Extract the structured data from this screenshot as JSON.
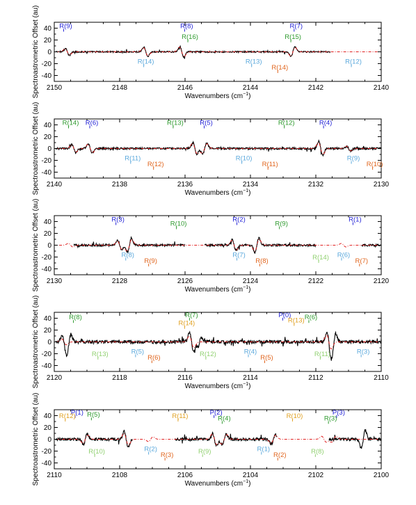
{
  "colors": {
    "dark_blue": "#1f1fd6",
    "green": "#2e9a2e",
    "light_blue": "#5aa8dc",
    "orange": "#e0641c",
    "yellow_orange": "#e0a020",
    "light_green": "#90d070",
    "data_line": "#000000",
    "model_line": "#e02020"
  },
  "chart_data": [
    {
      "type": "line",
      "xlabel": "Wavenumbers (cm",
      "xlabel_sup": "−1",
      "xlabel_end": ")",
      "ylabel": "Spectroastrometric Offset (au)",
      "xlim": [
        2150,
        2140
      ],
      "ylim": [
        -50,
        50
      ],
      "x_ticks": [
        "2150",
        "2148",
        "2146",
        "2144",
        "2142",
        "2140"
      ],
      "y_ticks": [
        "40",
        "20",
        "0",
        "-20",
        "-40"
      ],
      "series": [
        {
          "role": "data",
          "segments": [
            [
              2149.95,
              2141.55
            ]
          ],
          "features": [
            [
              2149.6,
              6
            ],
            [
              2147.2,
              8
            ],
            [
              2146.1,
              9
            ],
            [
              2142.7,
              -8
            ]
          ],
          "noise": 1.2
        },
        {
          "role": "model",
          "segments": [
            [
              2149.95,
              2140.0
            ]
          ],
          "features": [
            [
              2149.6,
              5
            ],
            [
              2147.2,
              7
            ],
            [
              2146.1,
              8
            ],
            [
              2142.7,
              -7
            ]
          ]
        }
      ],
      "annotations": [
        {
          "label": "R(9)",
          "x": 2149.65,
          "y": 40,
          "color": "dark_blue"
        },
        {
          "label": "R(8)",
          "x": 2145.95,
          "y": 40,
          "color": "dark_blue"
        },
        {
          "label": "R(7)",
          "x": 2142.6,
          "y": 40,
          "color": "dark_blue"
        },
        {
          "label": "R(16)",
          "x": 2145.85,
          "y": 22,
          "color": "green"
        },
        {
          "label": "R(15)",
          "x": 2142.7,
          "y": 22,
          "color": "green"
        },
        {
          "label": "R(14)",
          "x": 2147.2,
          "y": -20,
          "color": "light_blue"
        },
        {
          "label": "R(13)",
          "x": 2143.9,
          "y": -20,
          "color": "light_blue"
        },
        {
          "label": "R(12)",
          "x": 2140.85,
          "y": -20,
          "color": "light_blue"
        },
        {
          "label": "R(14)",
          "x": 2143.1,
          "y": -30,
          "color": "orange"
        }
      ]
    },
    {
      "type": "line",
      "xlabel": "Wavenumbers (cm",
      "xlabel_sup": "−1",
      "xlabel_end": ")",
      "ylabel": "Spectroastrometric Offset (au)",
      "xlim": [
        2140,
        2130
      ],
      "ylim": [
        -50,
        50
      ],
      "x_ticks": [
        "2140",
        "2138",
        "2136",
        "2134",
        "2132",
        "2130"
      ],
      "y_ticks": [
        "40",
        "20",
        "0",
        "-20",
        "-40"
      ],
      "series": [
        {
          "role": "data",
          "segments": [
            [
              2139.95,
              2130.0
            ]
          ],
          "features": [
            [
              2139.4,
              7
            ],
            [
              2138.9,
              8
            ],
            [
              2135.7,
              10
            ],
            [
              2135.4,
              -9
            ],
            [
              2131.85,
              12
            ],
            [
              2131.0,
              4
            ]
          ],
          "noise": 1.6
        },
        {
          "role": "model",
          "segments": [
            [
              2139.95,
              2130.0
            ]
          ],
          "features": [
            [
              2139.4,
              6
            ],
            [
              2138.9,
              7
            ],
            [
              2135.7,
              9
            ],
            [
              2135.4,
              -8
            ],
            [
              2131.85,
              10
            ],
            [
              2131.0,
              4
            ]
          ]
        }
      ],
      "annotations": [
        {
          "label": "R(14)",
          "x": 2139.5,
          "y": 40,
          "color": "green"
        },
        {
          "label": "R(6)",
          "x": 2138.85,
          "y": 40,
          "color": "dark_blue"
        },
        {
          "label": "R(13)",
          "x": 2136.3,
          "y": 40,
          "color": "green"
        },
        {
          "label": "R(5)",
          "x": 2135.35,
          "y": 40,
          "color": "dark_blue"
        },
        {
          "label": "R(12)",
          "x": 2132.9,
          "y": 40,
          "color": "green"
        },
        {
          "label": "R(4)",
          "x": 2131.7,
          "y": 40,
          "color": "dark_blue"
        },
        {
          "label": "R(11)",
          "x": 2137.6,
          "y": -20,
          "color": "light_blue"
        },
        {
          "label": "R(10)",
          "x": 2134.2,
          "y": -20,
          "color": "light_blue"
        },
        {
          "label": "R(9)",
          "x": 2130.85,
          "y": -20,
          "color": "light_blue"
        },
        {
          "label": "R(12)",
          "x": 2136.9,
          "y": -30,
          "color": "orange"
        },
        {
          "label": "R(11)",
          "x": 2133.4,
          "y": -30,
          "color": "orange"
        },
        {
          "label": "R(10)",
          "x": 2130.2,
          "y": -30,
          "color": "orange"
        }
      ]
    },
    {
      "type": "line",
      "xlabel": "Wavenumbers (cm",
      "xlabel_sup": "−1",
      "xlabel_end": ")",
      "ylabel": "Spectroastrometric Offset (au)",
      "xlim": [
        2130,
        2120
      ],
      "ylim": [
        -50,
        50
      ],
      "x_ticks": [
        "2130",
        "2128",
        "2126",
        "2124",
        "2122",
        "2120"
      ],
      "y_ticks": [
        "40",
        "20",
        "0",
        "-20",
        "-40"
      ],
      "series": [
        {
          "role": "data",
          "segments": [
            [
              2129.4,
              2126.0
            ],
            [
              2125.4,
              2122.0
            ],
            [
              2120.6,
              2120.0
            ]
          ],
          "features": [
            [
              2128.0,
              8
            ],
            [
              2127.7,
              -12
            ],
            [
              2124.5,
              9
            ],
            [
              2123.8,
              -12
            ]
          ],
          "noise": 1.8
        },
        {
          "role": "model",
          "segments": [
            [
              2129.85,
              2120.0
            ]
          ],
          "features": [
            [
              2129.5,
              3
            ],
            [
              2128.0,
              7
            ],
            [
              2127.7,
              -10
            ],
            [
              2124.5,
              8
            ],
            [
              2123.8,
              -10
            ],
            [
              2121.15,
              3
            ]
          ]
        }
      ],
      "annotations": [
        {
          "label": "R(3)",
          "x": 2128.05,
          "y": 40,
          "color": "dark_blue"
        },
        {
          "label": "R(2)",
          "x": 2124.35,
          "y": 40,
          "color": "dark_blue"
        },
        {
          "label": "R(1)",
          "x": 2120.8,
          "y": 40,
          "color": "dark_blue"
        },
        {
          "label": "R(10)",
          "x": 2126.2,
          "y": 33,
          "color": "green"
        },
        {
          "label": "R(9)",
          "x": 2123.05,
          "y": 33,
          "color": "green"
        },
        {
          "label": "R(8)",
          "x": 2127.75,
          "y": -20,
          "color": "light_blue"
        },
        {
          "label": "R(7)",
          "x": 2124.35,
          "y": -20,
          "color": "light_blue"
        },
        {
          "label": "R(6)",
          "x": 2121.15,
          "y": -20,
          "color": "light_blue"
        },
        {
          "label": "R(14)",
          "x": 2121.85,
          "y": -24,
          "color": "light_green"
        },
        {
          "label": "R(9)",
          "x": 2127.05,
          "y": -30,
          "color": "orange"
        },
        {
          "label": "R(8)",
          "x": 2123.65,
          "y": -30,
          "color": "orange"
        },
        {
          "label": "R(7)",
          "x": 2120.6,
          "y": -30,
          "color": "orange"
        }
      ]
    },
    {
      "type": "line",
      "xlabel": "Wavenumbers (cm",
      "xlabel_sup": "−1",
      "xlabel_end": ")",
      "ylabel": "Spectroastrometric Offset (au)",
      "xlim": [
        2120,
        2110
      ],
      "ylim": [
        -50,
        50
      ],
      "x_ticks": [
        "2120",
        "2118",
        "2116",
        "2114",
        "2112",
        "2110"
      ],
      "y_ticks": [
        "40",
        "20",
        "0",
        "-20",
        "-40"
      ],
      "series": [
        {
          "role": "data",
          "segments": [
            [
              2119.95,
              2110.0
            ]
          ],
          "features": [
            [
              2119.7,
              10
            ],
            [
              2119.55,
              -13
            ],
            [
              2115.8,
              16
            ],
            [
              2115.55,
              -8
            ],
            [
              2111.6,
              17
            ],
            [
              2111.45,
              -14
            ]
          ],
          "noise": 2.8
        },
        {
          "role": "model",
          "segments": [
            [
              2119.95,
              2110.0
            ]
          ],
          "features": [
            [
              2119.7,
              5
            ],
            [
              2115.8,
              10
            ],
            [
              2111.6,
              12
            ]
          ]
        }
      ],
      "annotations": [
        {
          "label": "R(8)",
          "x": 2119.35,
          "y": 38,
          "color": "green"
        },
        {
          "label": "R(7)",
          "x": 2115.8,
          "y": 42,
          "color": "green"
        },
        {
          "label": "P(0)",
          "x": 2112.95,
          "y": 42,
          "color": "dark_blue"
        },
        {
          "label": "R(14)",
          "x": 2115.95,
          "y": 28,
          "color": "yellow_orange"
        },
        {
          "label": "R(13)",
          "x": 2112.6,
          "y": 33,
          "color": "yellow_orange"
        },
        {
          "label": "R(6)",
          "x": 2112.15,
          "y": 38,
          "color": "green"
        },
        {
          "label": "R(13)",
          "x": 2118.6,
          "y": -24,
          "color": "light_green"
        },
        {
          "label": "R(5)",
          "x": 2117.45,
          "y": -20,
          "color": "light_blue"
        },
        {
          "label": "R(12)",
          "x": 2115.3,
          "y": -24,
          "color": "light_green"
        },
        {
          "label": "R(4)",
          "x": 2114.0,
          "y": -20,
          "color": "light_blue"
        },
        {
          "label": "R(11)",
          "x": 2111.8,
          "y": -24,
          "color": "light_green"
        },
        {
          "label": "R(3)",
          "x": 2110.55,
          "y": -20,
          "color": "light_blue"
        },
        {
          "label": "R(6)",
          "x": 2116.95,
          "y": -30,
          "color": "orange"
        },
        {
          "label": "R(5)",
          "x": 2113.5,
          "y": -30,
          "color": "orange"
        }
      ]
    },
    {
      "type": "line",
      "xlabel": "Wavenumbers (cm",
      "xlabel_sup": "−1",
      "xlabel_end": ")",
      "ylabel": "Spectroastrometric Offset (au)",
      "xlim": [
        2110,
        2100
      ],
      "ylim": [
        -50,
        50
      ],
      "x_ticks": [
        "2110",
        "2108",
        "2106",
        "2104",
        "2102",
        "2100"
      ],
      "y_ticks": [
        "40",
        "20",
        "0",
        "-20",
        "-40"
      ],
      "series": [
        {
          "role": "data",
          "segments": [
            [
              2109.95,
              2107.6
            ],
            [
              2106.3,
              2103.2
            ],
            [
              2101.6,
              2100.0
            ]
          ],
          "features": [
            [
              2109.05,
              -9
            ],
            [
              2107.8,
              13
            ],
            [
              2105.1,
              10
            ],
            [
              2104.8,
              -9
            ],
            [
              2103.3,
              -8
            ],
            [
              2100.55,
              -15
            ]
          ],
          "noise": 2.4
        },
        {
          "role": "model",
          "segments": [
            [
              2109.95,
              2100.0
            ]
          ],
          "features": [
            [
              2109.05,
              -7
            ],
            [
              2107.8,
              10
            ],
            [
              2107.05,
              -4
            ],
            [
              2105.1,
              9
            ],
            [
              2104.8,
              -8
            ],
            [
              2103.3,
              -7
            ],
            [
              2101.75,
              5
            ],
            [
              2101.45,
              -5
            ]
          ]
        }
      ],
      "annotations": [
        {
          "label": "P(1)",
          "x": 2109.3,
          "y": 42,
          "color": "dark_blue"
        },
        {
          "label": "R(12)",
          "x": 2109.6,
          "y": 36,
          "color": "yellow_orange"
        },
        {
          "label": "R(5)",
          "x": 2108.8,
          "y": 38,
          "color": "green"
        },
        {
          "label": "R(11)",
          "x": 2106.15,
          "y": 36,
          "color": "yellow_orange"
        },
        {
          "label": "P(2)",
          "x": 2105.05,
          "y": 42,
          "color": "dark_blue"
        },
        {
          "label": "R(4)",
          "x": 2104.8,
          "y": 32,
          "color": "green"
        },
        {
          "label": "R(10)",
          "x": 2102.65,
          "y": 36,
          "color": "yellow_orange"
        },
        {
          "label": "P(3)",
          "x": 2101.3,
          "y": 42,
          "color": "dark_blue"
        },
        {
          "label": "R(3)",
          "x": 2101.55,
          "y": 32,
          "color": "green"
        },
        {
          "label": "R(10)",
          "x": 2108.7,
          "y": -24,
          "color": "light_green"
        },
        {
          "label": "R(2)",
          "x": 2107.05,
          "y": -20,
          "color": "light_blue"
        },
        {
          "label": "R(9)",
          "x": 2105.4,
          "y": -24,
          "color": "light_green"
        },
        {
          "label": "R(1)",
          "x": 2103.6,
          "y": -20,
          "color": "light_blue"
        },
        {
          "label": "R(8)",
          "x": 2101.95,
          "y": -24,
          "color": "light_green"
        },
        {
          "label": "R(3)",
          "x": 2106.55,
          "y": -30,
          "color": "orange"
        },
        {
          "label": "R(2)",
          "x": 2103.1,
          "y": -30,
          "color": "orange"
        }
      ]
    }
  ]
}
